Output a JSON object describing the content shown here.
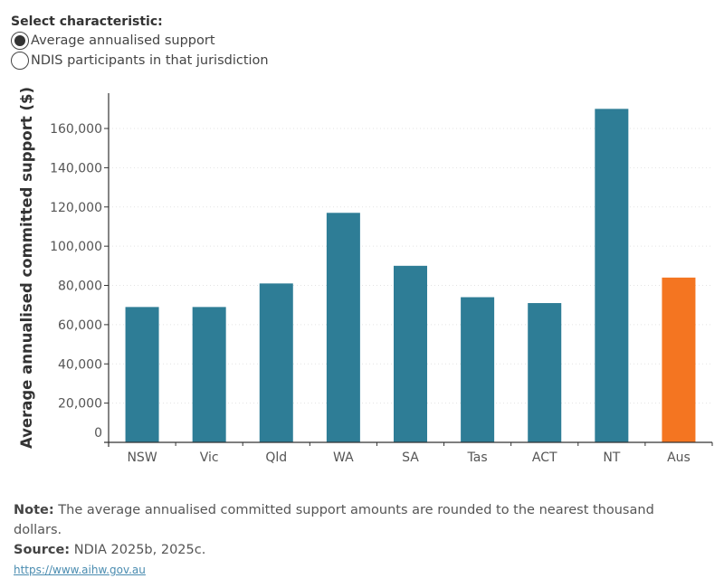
{
  "selector": {
    "title": "Select characteristic:",
    "options": [
      {
        "label": "Average annualised support",
        "checked": true
      },
      {
        "label": "NDIS participants in that jurisdiction",
        "checked": false
      }
    ]
  },
  "colors": {
    "jurisdiction": "#2e7d96",
    "australia": "#f47521",
    "axis": "#333333",
    "grid": "#e3e3e3"
  },
  "chart_data": {
    "type": "bar",
    "title": "",
    "xlabel": "",
    "ylabel": "Average annualised committed support ($)",
    "categories": [
      "NSW",
      "Vic",
      "Qld",
      "WA",
      "SA",
      "Tas",
      "ACT",
      "NT",
      "Aus"
    ],
    "values": [
      69000,
      69000,
      81000,
      117000,
      90000,
      74000,
      71000,
      170000,
      84000
    ],
    "highlight": [
      "Aus"
    ],
    "ylim": [
      0,
      178000
    ],
    "yticks": [
      0,
      20000,
      40000,
      60000,
      80000,
      100000,
      120000,
      140000,
      160000
    ],
    "ytick_labels": [
      "0",
      "20,000",
      "40,000",
      "60,000",
      "80,000",
      "100,000",
      "120,000",
      "140,000",
      "160,000"
    ],
    "grid": true,
    "legend": "none"
  },
  "footer": {
    "note_label": "Note:",
    "note_text": " The average annualised committed support amounts are rounded to the nearest thousand dollars.",
    "source_label": "Source:",
    "source_text": " NDIA 2025b, 2025c.",
    "link_text": "https://www.aihw.gov.au"
  }
}
